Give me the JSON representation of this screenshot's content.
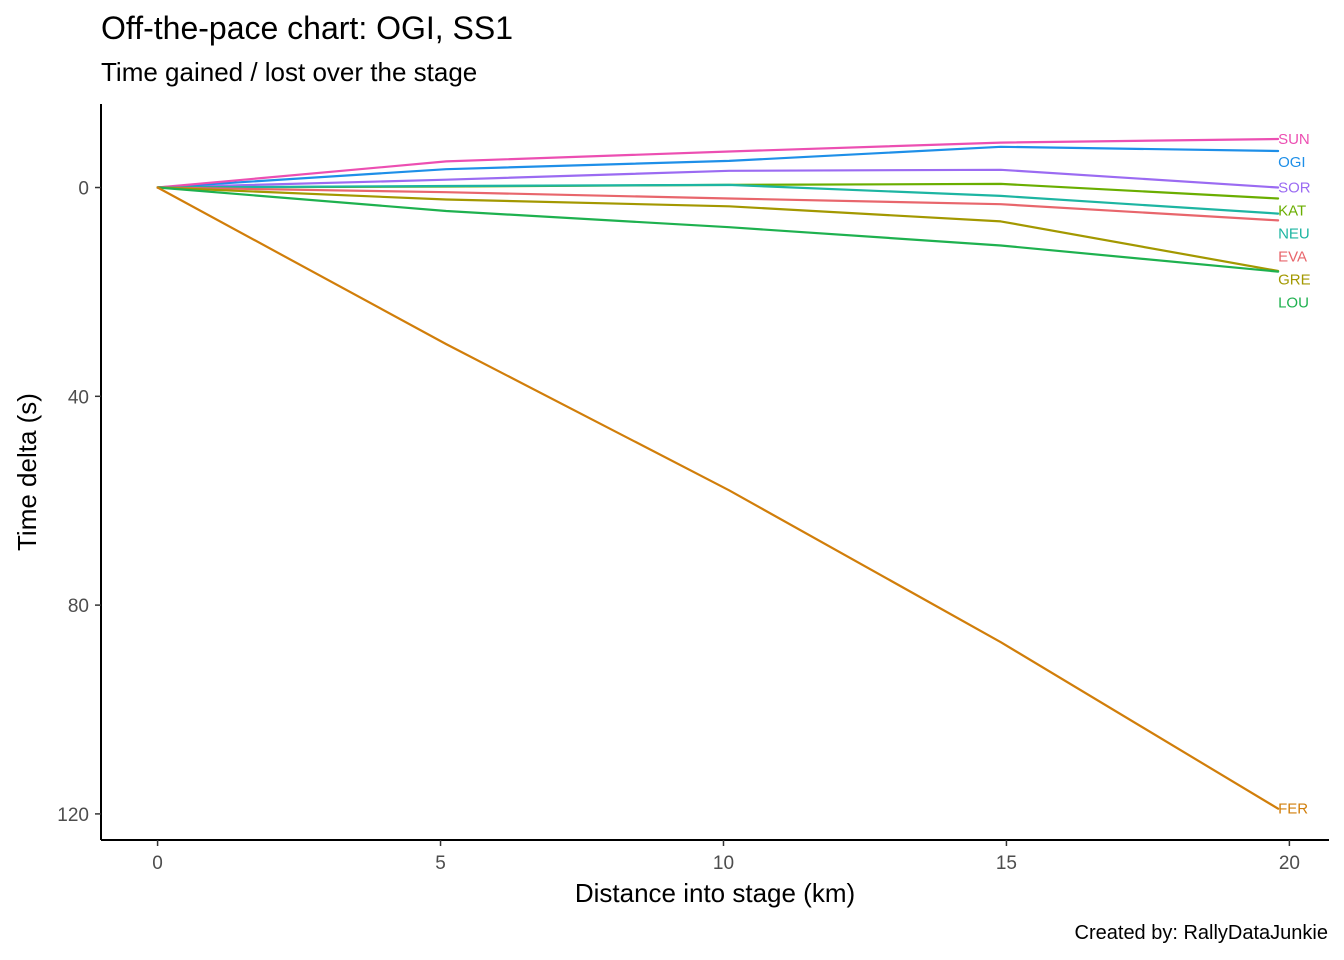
{
  "chart_data": {
    "type": "line",
    "title": "Off-the-pace chart: OGI, SS1",
    "subtitle": "Time gained / lost over the stage",
    "xlabel": "Distance into stage (km)",
    "ylabel": "Time delta (s)",
    "caption": "Created by: RallyDataJunkie",
    "xlim": [
      -1,
      20.7
    ],
    "ylim": [
      -16,
      125
    ],
    "y_reversed": true,
    "grid": false,
    "legend": "none (direct labels at line ends)",
    "x_ticks": [
      0,
      5,
      10,
      15,
      20
    ],
    "y_ticks": [
      0,
      40,
      80,
      120
    ],
    "x": [
      0,
      5.1,
      10.1,
      14.9,
      19.8
    ],
    "series": [
      {
        "name": "SOR",
        "color": "#9B6BF2",
        "values": [
          0,
          -1.5,
          -3.2,
          -3.4,
          0
        ]
      },
      {
        "name": "OGI",
        "color": "#1E8FE8",
        "values": [
          0,
          -3.5,
          -5.1,
          -7.8,
          -7.0
        ]
      },
      {
        "name": "KAT",
        "color": "#6AAE00",
        "values": [
          0,
          -0.2,
          -0.5,
          -0.7,
          2.1
        ]
      },
      {
        "name": "SUN",
        "color": "#EC4FB2",
        "values": [
          0,
          -5.0,
          -6.9,
          -8.6,
          -9.3
        ]
      },
      {
        "name": "NEU",
        "color": "#1DB5A2",
        "values": [
          0,
          -0.3,
          -0.5,
          1.6,
          5.0
        ]
      },
      {
        "name": "EVA",
        "color": "#E8666C",
        "values": [
          0,
          0.9,
          2.1,
          3.2,
          6.3
        ]
      },
      {
        "name": "GRE",
        "color": "#A39800",
        "values": [
          0,
          2.3,
          3.6,
          6.5,
          16.0
        ]
      },
      {
        "name": "LOU",
        "color": "#1EB14F",
        "values": [
          0,
          4.5,
          7.6,
          11.1,
          16.1
        ]
      },
      {
        "name": "FER",
        "color": "#D17E0A",
        "values": [
          0,
          30.0,
          58.0,
          87.1,
          119.0
        ]
      }
    ]
  }
}
